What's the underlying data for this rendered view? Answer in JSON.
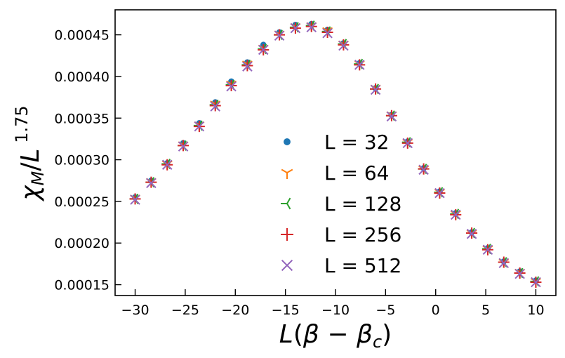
{
  "chart_data": {
    "type": "scatter",
    "xlabel": "L(β − β_c)",
    "ylabel": "χ_M/L^1.75",
    "xlim": [
      -32,
      12
    ],
    "ylim": [
      0.000137,
      0.00048
    ],
    "x_ticks": [
      -30,
      -25,
      -20,
      -15,
      -10,
      -5,
      0,
      5,
      10
    ],
    "x_tick_labels": [
      "−30",
      "−25",
      "−20",
      "−15",
      "−10",
      "−5",
      "0",
      "5",
      "10"
    ],
    "y_ticks": [
      0.00015,
      0.0002,
      0.00025,
      0.0003,
      0.00035,
      0.0004,
      0.00045
    ],
    "y_tick_labels": [
      "0.00015",
      "0.00020",
      "0.00025",
      "0.00030",
      "0.00035",
      "0.00040",
      "0.00045"
    ],
    "grid": false,
    "legend_position": "center",
    "series": [
      {
        "name": "L = 32",
        "marker": "circle",
        "color": "#1f77b4",
        "x": [
          -30.0,
          -28.4,
          -26.8,
          -25.2,
          -23.6,
          -22.0,
          -20.4,
          -18.8,
          -17.2,
          -15.6,
          -14.0,
          -12.4,
          -10.8,
          -9.2,
          -7.6,
          -6.0,
          -4.4,
          -2.8,
          -1.2,
          0.4,
          2.0,
          3.6,
          5.2,
          6.8,
          8.4,
          10.0
        ],
        "y": [
          0.000255,
          0.000275,
          0.000296,
          0.00032,
          0.000344,
          0.000369,
          0.000394,
          0.000417,
          0.000438,
          0.000453,
          0.000462,
          0.000463,
          0.000456,
          0.00044,
          0.000416,
          0.000386,
          0.000354,
          0.000322,
          0.00029,
          0.000262,
          0.000236,
          0.000213,
          0.000194,
          0.000178,
          0.000166,
          0.000155
        ]
      },
      {
        "name": "L = 64",
        "marker": "tri_down",
        "color": "#ff7f0e",
        "x": [
          -30.0,
          -28.4,
          -26.8,
          -25.2,
          -23.6,
          -22.0,
          -20.4,
          -18.8,
          -17.2,
          -15.6,
          -14.0,
          -12.4,
          -10.8,
          -9.2,
          -7.6,
          -6.0,
          -4.4,
          -2.8,
          -1.2,
          0.4,
          2.0,
          3.6,
          5.2,
          6.8,
          8.4,
          10.0
        ],
        "y": [
          0.000254,
          0.000274,
          0.000295,
          0.000318,
          0.000342,
          0.000367,
          0.000391,
          0.000415,
          0.000434,
          0.000451,
          0.00046,
          0.000461,
          0.000455,
          0.000439,
          0.000415,
          0.000386,
          0.000354,
          0.000321,
          0.000289,
          0.000261,
          0.000235,
          0.000212,
          0.000193,
          0.000177,
          0.000165,
          0.000154
        ]
      },
      {
        "name": "L = 128",
        "marker": "tri_left",
        "color": "#2ca02c",
        "x": [
          -30.0,
          -28.4,
          -26.8,
          -25.2,
          -23.6,
          -22.0,
          -20.4,
          -18.8,
          -17.2,
          -15.6,
          -14.0,
          -12.4,
          -10.8,
          -9.2,
          -7.6,
          -6.0,
          -4.4,
          -2.8,
          -1.2,
          0.4,
          2.0,
          3.6,
          5.2,
          6.8,
          8.4,
          10.0
        ],
        "y": [
          0.000253,
          0.000273,
          0.000295,
          0.000317,
          0.000341,
          0.000366,
          0.00039,
          0.000414,
          0.000433,
          0.00045,
          0.000459,
          0.000461,
          0.000454,
          0.000439,
          0.000415,
          0.000385,
          0.000353,
          0.000321,
          0.000289,
          0.000261,
          0.000235,
          0.000212,
          0.000193,
          0.000177,
          0.000164,
          0.000154
        ]
      },
      {
        "name": "L = 256",
        "marker": "plus",
        "color": "#d62728",
        "x": [
          -30.0,
          -28.4,
          -26.8,
          -25.2,
          -23.6,
          -22.0,
          -20.4,
          -18.8,
          -17.2,
          -15.6,
          -14.0,
          -12.4,
          -10.8,
          -9.2,
          -7.6,
          -6.0,
          -4.4,
          -2.8,
          -1.2,
          0.4,
          2.0,
          3.6,
          5.2,
          6.8,
          8.4,
          10.0
        ],
        "y": [
          0.000253,
          0.000273,
          0.000294,
          0.000317,
          0.00034,
          0.000365,
          0.000389,
          0.000413,
          0.000432,
          0.00045,
          0.000458,
          0.00046,
          0.000453,
          0.000438,
          0.000414,
          0.000385,
          0.000353,
          0.00032,
          0.000289,
          0.00026,
          0.000234,
          0.000212,
          0.000192,
          0.000177,
          0.000164,
          0.000153
        ]
      },
      {
        "name": "L = 512",
        "marker": "x",
        "color": "#9467bd",
        "x": [
          -30.0,
          -28.4,
          -26.8,
          -25.2,
          -23.6,
          -22.0,
          -20.4,
          -18.8,
          -17.2,
          -15.6,
          -14.0,
          -12.4,
          -10.8,
          -9.2,
          -7.6,
          -6.0,
          -4.4,
          -2.8,
          -1.2,
          0.4,
          2.0,
          3.6,
          5.2,
          6.8,
          8.4,
          10.0
        ],
        "y": [
          0.000252,
          0.000272,
          0.000294,
          0.000316,
          0.00034,
          0.000364,
          0.000388,
          0.000412,
          0.000432,
          0.000449,
          0.000458,
          0.000459,
          0.000452,
          0.000437,
          0.000414,
          0.000384,
          0.000352,
          0.00032,
          0.000288,
          0.00026,
          0.000234,
          0.000211,
          0.000192,
          0.000176,
          0.000163,
          0.000153
        ]
      }
    ]
  }
}
